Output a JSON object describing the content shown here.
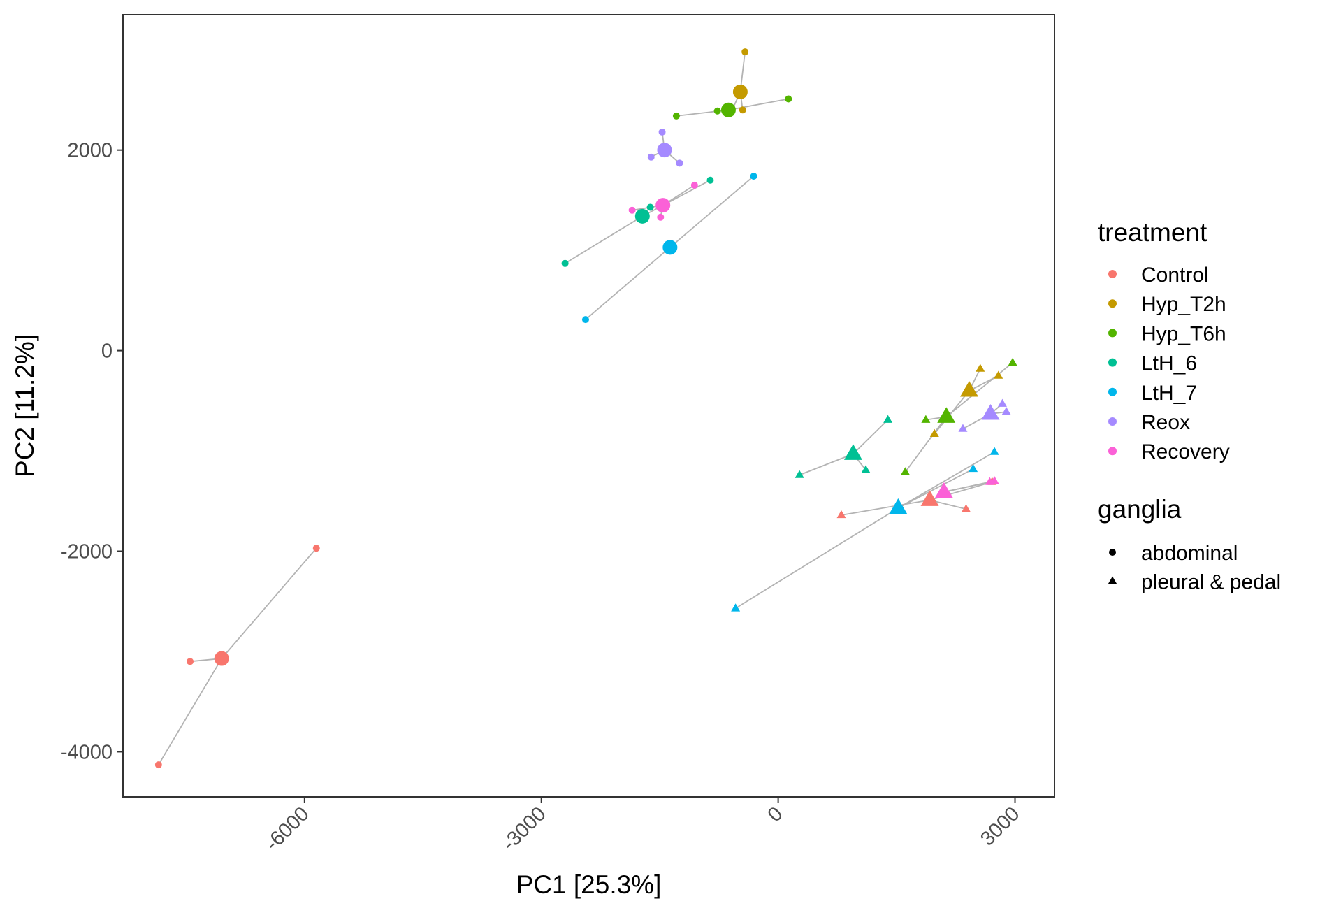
{
  "chart_data": {
    "type": "scatter",
    "title": "",
    "xlabel": "PC1 [25.3%]",
    "ylabel": "PC2 [11.2%]",
    "xlim": [
      -8300,
      3500
    ],
    "ylim": [
      -4450,
      3350
    ],
    "xticks": [
      -6000,
      -3000,
      0,
      3000
    ],
    "xtick_labels": [
      "-6000",
      "-3000",
      "0",
      "3000"
    ],
    "yticks": [
      -4000,
      -2000,
      0,
      2000
    ],
    "ytick_labels": [
      "-4000",
      "-2000",
      "0",
      "2000"
    ],
    "grid": false,
    "legend_position": "right",
    "colors": {
      "Control": "#F8766D",
      "Hyp_T2h": "#C49A00",
      "Hyp_T6h": "#53B400",
      "LtH_6": "#00C094",
      "LtH_7": "#00B6EB",
      "Reox": "#A58AFF",
      "Recovery": "#FB61D7"
    },
    "legend": {
      "treatment": {
        "title": "treatment",
        "entries": [
          "Control",
          "Hyp_T2h",
          "Hyp_T6h",
          "LtH_6",
          "LtH_7",
          "Reox",
          "Recovery"
        ]
      },
      "ganglia": {
        "title": "ganglia",
        "entries": [
          {
            "label": "abdominal",
            "shape": "circle"
          },
          {
            "label": "pleural & pedal",
            "shape": "triangle"
          }
        ]
      }
    },
    "groups": [
      {
        "treatment": "Control",
        "ganglia": "abdominal",
        "centroid": [
          -7050,
          -3070
        ],
        "points": [
          [
            -5850,
            -1970
          ],
          [
            -7450,
            -3100
          ],
          [
            -7850,
            -4130
          ]
        ]
      },
      {
        "treatment": "Hyp_T2h",
        "ganglia": "abdominal",
        "centroid": [
          -480,
          2580
        ],
        "points": [
          [
            -420,
            2980
          ],
          [
            -450,
            2400
          ],
          [
            -600,
            2370
          ]
        ]
      },
      {
        "treatment": "Hyp_T6h",
        "ganglia": "abdominal",
        "centroid": [
          -630,
          2400
        ],
        "points": [
          [
            130,
            2510
          ],
          [
            -1290,
            2340
          ],
          [
            -770,
            2390
          ]
        ]
      },
      {
        "treatment": "Reox",
        "ganglia": "abdominal",
        "centroid": [
          -1440,
          2000
        ],
        "points": [
          [
            -1470,
            2180
          ],
          [
            -1610,
            1930
          ],
          [
            -1250,
            1870
          ]
        ]
      },
      {
        "treatment": "Recovery",
        "ganglia": "abdominal",
        "centroid": [
          -1460,
          1450
        ],
        "points": [
          [
            -1060,
            1650
          ],
          [
            -1850,
            1400
          ],
          [
            -1490,
            1330
          ]
        ]
      },
      {
        "treatment": "LtH_6",
        "ganglia": "abdominal",
        "centroid": [
          -1720,
          1340
        ],
        "points": [
          [
            -860,
            1700
          ],
          [
            -2700,
            870
          ],
          [
            -1620,
            1430
          ]
        ]
      },
      {
        "treatment": "LtH_7",
        "ganglia": "abdominal",
        "centroid": [
          -1370,
          1030
        ],
        "points": [
          [
            -310,
            1740
          ],
          [
            -2440,
            310
          ]
        ]
      },
      {
        "treatment": "Hyp_T2h",
        "ganglia": "pleural & pedal",
        "centroid": [
          2420,
          -400
        ],
        "points": [
          [
            2560,
            -180
          ],
          [
            2790,
            -250
          ],
          [
            1980,
            -830
          ]
        ]
      },
      {
        "treatment": "Hyp_T6h",
        "ganglia": "pleural & pedal",
        "centroid": [
          2130,
          -660
        ],
        "points": [
          [
            2970,
            -120
          ],
          [
            1870,
            -690
          ],
          [
            1610,
            -1210
          ]
        ]
      },
      {
        "treatment": "Reox",
        "ganglia": "pleural & pedal",
        "centroid": [
          2690,
          -630
        ],
        "points": [
          [
            2840,
            -530
          ],
          [
            2890,
            -610
          ],
          [
            2340,
            -780
          ]
        ]
      },
      {
        "treatment": "LtH_6",
        "ganglia": "pleural & pedal",
        "centroid": [
          950,
          -1030
        ],
        "points": [
          [
            1390,
            -690
          ],
          [
            270,
            -1240
          ],
          [
            1110,
            -1190
          ]
        ]
      },
      {
        "treatment": "LtH_7",
        "ganglia": "pleural & pedal",
        "centroid": [
          1520,
          -1570
        ],
        "points": [
          [
            2740,
            -1010
          ],
          [
            2470,
            -1180
          ],
          [
            -540,
            -2570
          ]
        ]
      },
      {
        "treatment": "Control",
        "ganglia": "pleural & pedal",
        "centroid": [
          1920,
          -1490
        ],
        "points": [
          [
            800,
            -1640
          ],
          [
            2380,
            -1580
          ],
          [
            2710,
            -1310
          ]
        ]
      },
      {
        "treatment": "Recovery",
        "ganglia": "pleural & pedal",
        "centroid": [
          2100,
          -1410
        ],
        "points": [
          [
            2680,
            -1310
          ],
          [
            2740,
            -1300
          ]
        ]
      }
    ]
  }
}
